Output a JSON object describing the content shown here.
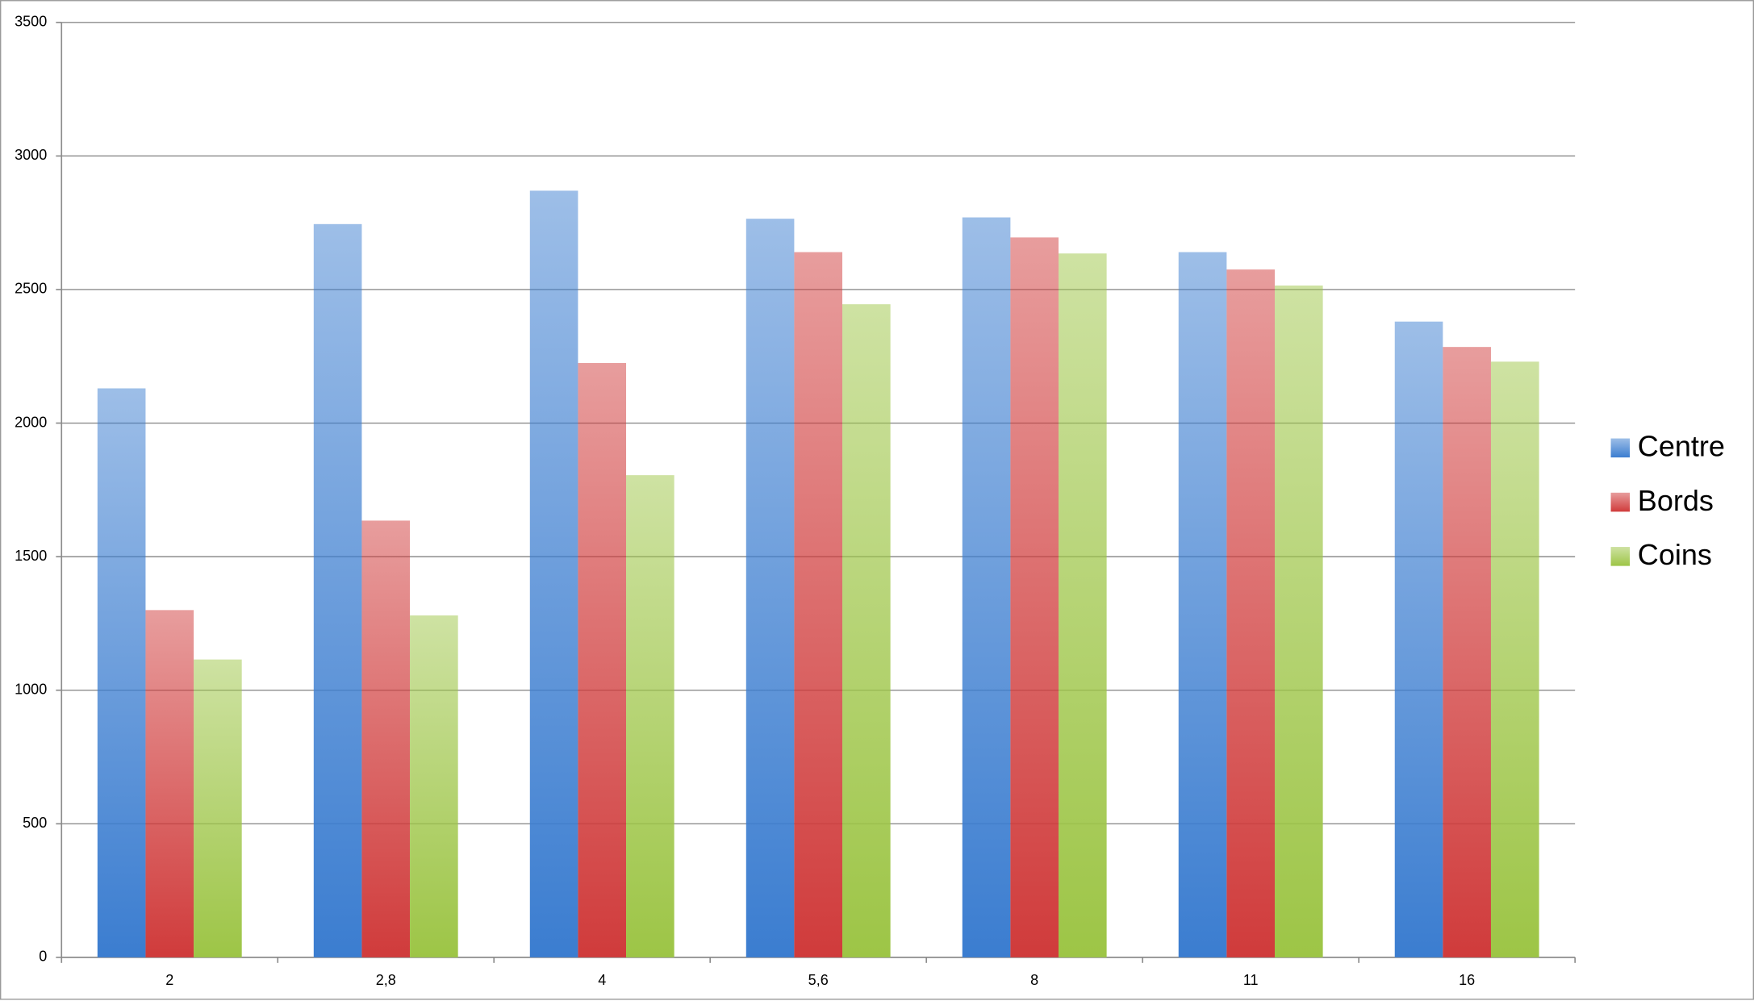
{
  "chart_data": {
    "type": "bar",
    "categories": [
      "2",
      "2,8",
      "4",
      "5,6",
      "8",
      "11",
      "16"
    ],
    "series": [
      {
        "name": "Centre",
        "color": "#3b7dd0",
        "values": [
          2130,
          2745,
          2870,
          2765,
          2770,
          2640,
          2380
        ]
      },
      {
        "name": "Bords",
        "color": "#d03b3b",
        "values": [
          1300,
          1635,
          2225,
          2640,
          2695,
          2575,
          2285
        ]
      },
      {
        "name": "Coins",
        "color": "#9dc546",
        "values": [
          1115,
          1280,
          1805,
          2445,
          2635,
          2515,
          2230
        ]
      }
    ],
    "ylim": [
      0,
      3500
    ],
    "yticks": [
      0,
      500,
      1000,
      1500,
      2000,
      2500,
      3000,
      3500
    ],
    "grid": true,
    "legend": "right"
  }
}
